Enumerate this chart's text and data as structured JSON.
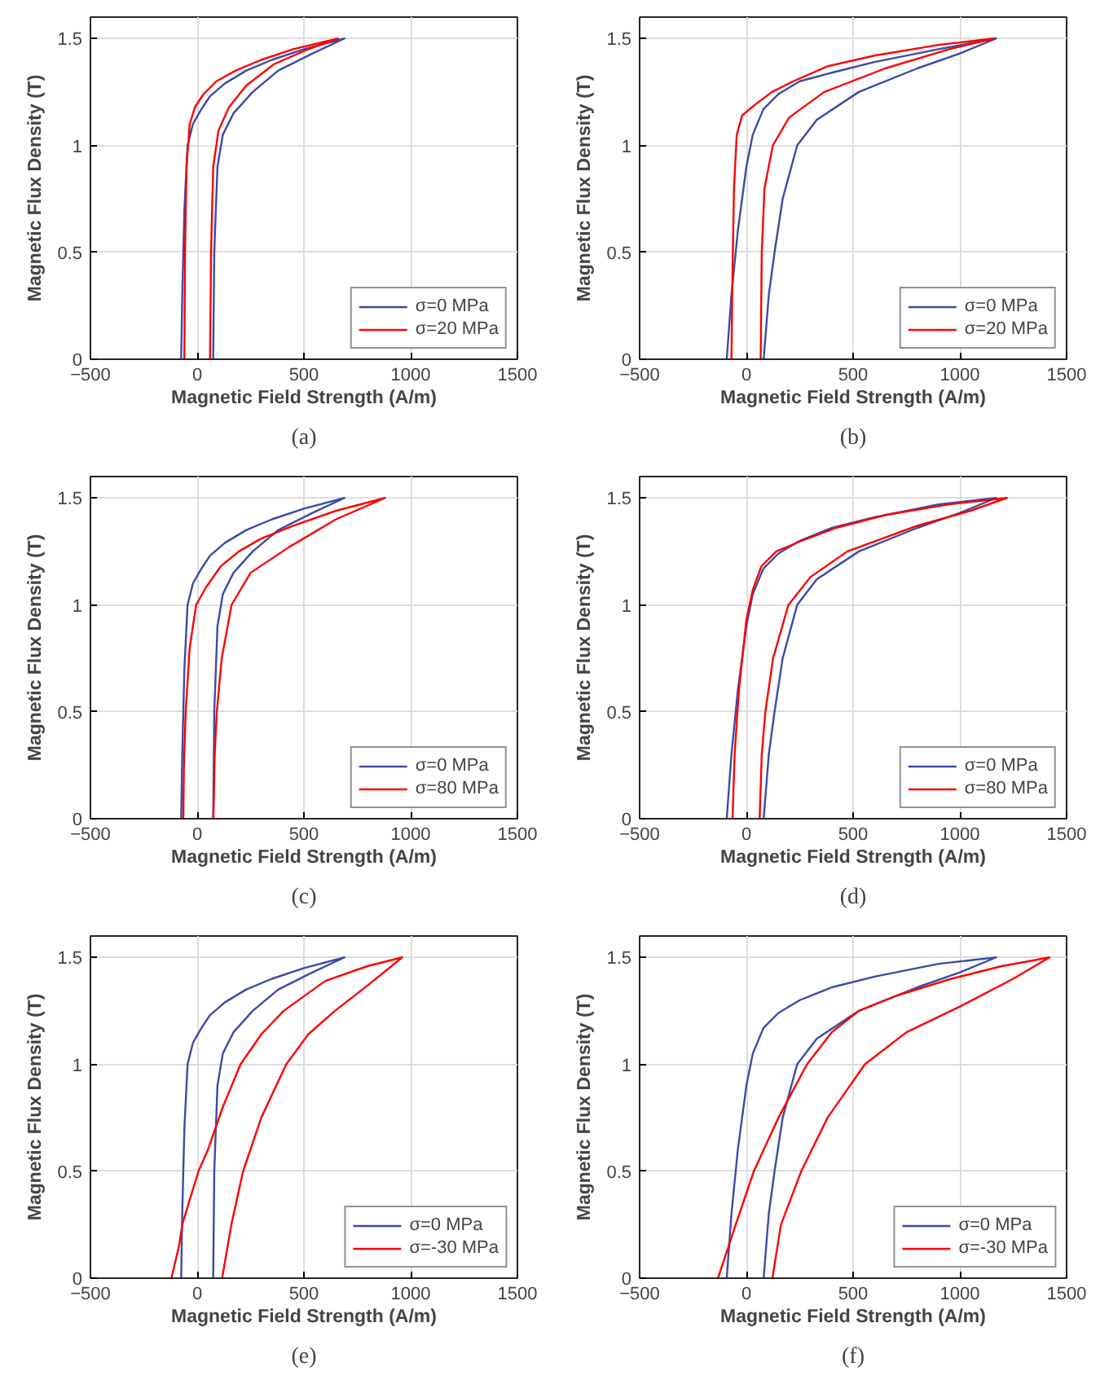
{
  "chart_data": [
    {
      "type": "line",
      "xlabel": "Magnetic Field Strength (A/m)",
      "ylabel": "Magnetic Flux Density (T)",
      "xlim": [
        -500,
        1500
      ],
      "ylim": [
        0,
        1.6
      ],
      "xticks": [
        -500,
        0,
        500,
        1000,
        1500
      ],
      "yticks": [
        0,
        0.5,
        1,
        1.5
      ],
      "grid": true,
      "legend": "bottom right",
      "annotations": [
        "(a)"
      ],
      "series": [
        {
          "name": "σ=0 MPa",
          "color": "#3b4ba8",
          "x": [
            -75,
            -70,
            -60,
            -45,
            -20,
            20,
            60,
            130,
            230,
            350,
            500,
            690,
            540,
            380,
            260,
            170,
            120,
            95,
            80,
            75
          ],
          "values": [
            0,
            0.3,
            0.7,
            1.0,
            1.1,
            1.17,
            1.23,
            1.29,
            1.35,
            1.4,
            1.45,
            1.5,
            1.43,
            1.35,
            1.25,
            1.15,
            1.05,
            0.9,
            0.5,
            0
          ]
        },
        {
          "name": "σ=20 MPa",
          "color": "#ff0000",
          "x": [
            -60,
            -57,
            -50,
            -35,
            -10,
            30,
            90,
            180,
            300,
            450,
            660,
            520,
            360,
            230,
            150,
            100,
            75,
            65,
            60
          ],
          "values": [
            0,
            0.5,
            0.9,
            1.1,
            1.18,
            1.24,
            1.3,
            1.35,
            1.4,
            1.45,
            1.5,
            1.45,
            1.38,
            1.28,
            1.18,
            1.07,
            0.9,
            0.5,
            0
          ]
        }
      ]
    },
    {
      "type": "line",
      "xlabel": "Magnetic Field Strength (A/m)",
      "ylabel": "Magnetic Flux Density (T)",
      "xlim": [
        -500,
        1500
      ],
      "ylim": [
        0,
        1.6
      ],
      "xticks": [
        -500,
        0,
        500,
        1000,
        1500
      ],
      "yticks": [
        0,
        0.5,
        1,
        1.5
      ],
      "grid": true,
      "legend": "bottom right",
      "annotations": [
        "(b)"
      ],
      "series": [
        {
          "name": "σ=0 MPa",
          "color": "#3b4ba8",
          "x": [
            -92,
            -70,
            -40,
            0,
            30,
            80,
            150,
            250,
            400,
            600,
            900,
            1170,
            1000,
            800,
            527,
            330,
            238,
            170,
            132,
            105,
            81
          ],
          "values": [
            0,
            0.3,
            0.6,
            0.9,
            1.05,
            1.17,
            1.24,
            1.3,
            1.34,
            1.39,
            1.45,
            1.5,
            1.43,
            1.36,
            1.25,
            1.12,
            1.0,
            0.75,
            0.5,
            0.3,
            0
          ]
        },
        {
          "name": "σ=20 MPa",
          "color": "#ff0000",
          "x": [
            -70,
            -65,
            -58,
            -45,
            -20,
            40,
            120,
            220,
            380,
            600,
            900,
            1160,
            950,
            650,
            365,
            200,
            124,
            85,
            72,
            67
          ],
          "values": [
            0,
            0.4,
            0.8,
            1.05,
            1.14,
            1.19,
            1.25,
            1.3,
            1.37,
            1.42,
            1.47,
            1.5,
            1.45,
            1.36,
            1.25,
            1.13,
            1.0,
            0.8,
            0.5,
            0
          ]
        }
      ]
    },
    {
      "type": "line",
      "xlabel": "Magnetic Field Strength (A/m)",
      "ylabel": "Magnetic Flux Density (T)",
      "xlim": [
        -500,
        1500
      ],
      "ylim": [
        0,
        1.6
      ],
      "xticks": [
        -500,
        0,
        500,
        1000,
        1500
      ],
      "yticks": [
        0,
        0.5,
        1,
        1.5
      ],
      "grid": true,
      "legend": "bottom right",
      "annotations": [
        "(c)"
      ],
      "series": [
        {
          "name": "σ=0 MPa",
          "color": "#3b4ba8",
          "x": [
            -75,
            -70,
            -60,
            -45,
            -20,
            20,
            60,
            130,
            230,
            350,
            500,
            690,
            540,
            380,
            260,
            170,
            120,
            95,
            80,
            75
          ],
          "values": [
            0,
            0.3,
            0.7,
            1.0,
            1.1,
            1.17,
            1.23,
            1.29,
            1.35,
            1.4,
            1.45,
            1.5,
            1.43,
            1.35,
            1.25,
            1.15,
            1.05,
            0.9,
            0.5,
            0
          ]
        },
        {
          "name": "σ=80 MPa",
          "color": "#ff0000",
          "x": [
            -65,
            -62,
            -54,
            -35,
            -5,
            40,
            110,
            195,
            300,
            450,
            650,
            880,
            650,
            430,
            250,
            161,
            115,
            92,
            82,
            76
          ],
          "values": [
            0,
            0.25,
            0.5,
            0.8,
            1.0,
            1.08,
            1.18,
            1.25,
            1.31,
            1.37,
            1.44,
            1.5,
            1.4,
            1.27,
            1.15,
            1.0,
            0.75,
            0.5,
            0.3,
            0
          ]
        }
      ]
    },
    {
      "type": "line",
      "xlabel": "Magnetic Field Strength (A/m)",
      "ylabel": "Magnetic Flux Density (T)",
      "xlim": [
        -500,
        1500
      ],
      "ylim": [
        0,
        1.6
      ],
      "xticks": [
        -500,
        0,
        500,
        1000,
        1500
      ],
      "yticks": [
        0,
        0.5,
        1,
        1.5
      ],
      "grid": true,
      "legend": "bottom right",
      "annotations": [
        "(d)"
      ],
      "series": [
        {
          "name": "σ=0 MPa",
          "color": "#3b4ba8",
          "x": [
            -92,
            -70,
            -40,
            0,
            30,
            80,
            150,
            250,
            400,
            600,
            900,
            1170,
            1000,
            800,
            527,
            330,
            238,
            170,
            132,
            105,
            81
          ],
          "values": [
            0,
            0.3,
            0.6,
            0.9,
            1.05,
            1.17,
            1.24,
            1.3,
            1.36,
            1.41,
            1.47,
            1.5,
            1.43,
            1.36,
            1.25,
            1.12,
            1.0,
            0.75,
            0.5,
            0.3,
            0
          ]
        },
        {
          "name": "σ=80 MPa",
          "color": "#ff0000",
          "x": [
            -65,
            -55,
            -35,
            0,
            30,
            70,
            140,
            260,
            420,
            650,
            950,
            1220,
            1050,
            800,
            473,
            300,
            197,
            125,
            89,
            72,
            62
          ],
          "values": [
            0,
            0.3,
            0.6,
            0.93,
            1.07,
            1.18,
            1.25,
            1.3,
            1.36,
            1.42,
            1.47,
            1.5,
            1.44,
            1.37,
            1.25,
            1.13,
            1.0,
            0.75,
            0.5,
            0.3,
            0
          ]
        }
      ]
    },
    {
      "type": "line",
      "xlabel": "Magnetic Field Strength (A/m)",
      "ylabel": "Magnetic Flux Density (T)",
      "xlim": [
        -500,
        1500
      ],
      "ylim": [
        0,
        1.6
      ],
      "xticks": [
        -500,
        0,
        500,
        1000,
        1500
      ],
      "yticks": [
        0,
        0.5,
        1,
        1.5
      ],
      "grid": true,
      "legend": "bottom right",
      "annotations": [
        "(e)"
      ],
      "series": [
        {
          "name": "σ=0 MPa",
          "color": "#3b4ba8",
          "x": [
            -75,
            -70,
            -60,
            -45,
            -20,
            20,
            60,
            130,
            230,
            350,
            500,
            690,
            540,
            380,
            260,
            170,
            120,
            95,
            80,
            75
          ],
          "values": [
            0,
            0.3,
            0.7,
            1.0,
            1.1,
            1.17,
            1.23,
            1.29,
            1.35,
            1.4,
            1.45,
            1.5,
            1.43,
            1.35,
            1.25,
            1.15,
            1.05,
            0.9,
            0.5,
            0
          ]
        },
        {
          "name": "σ=-30 MPa",
          "color": "#ff0000",
          "x": [
            -121,
            -85,
            -70,
            -40,
            6,
            50,
            120,
            203,
            300,
            405,
            600,
            800,
            960,
            800,
            645,
            520,
            417,
            300,
            215,
            160,
            117
          ],
          "values": [
            0,
            0.15,
            0.25,
            0.35,
            0.5,
            0.6,
            0.8,
            1.0,
            1.14,
            1.25,
            1.39,
            1.46,
            1.5,
            1.37,
            1.25,
            1.14,
            1.0,
            0.75,
            0.5,
            0.25,
            0
          ]
        }
      ]
    },
    {
      "type": "line",
      "xlabel": "Magnetic Field Strength (A/m)",
      "ylabel": "Magnetic Flux Density (T)",
      "xlim": [
        -500,
        1500
      ],
      "ylim": [
        0,
        1.6
      ],
      "xticks": [
        -500,
        0,
        500,
        1000,
        1500
      ],
      "yticks": [
        0,
        0.5,
        1,
        1.5
      ],
      "grid": true,
      "legend": "bottom right",
      "annotations": [
        "(f)"
      ],
      "series": [
        {
          "name": "σ=0 MPa",
          "color": "#3b4ba8",
          "x": [
            -92,
            -70,
            -40,
            0,
            30,
            80,
            150,
            250,
            400,
            600,
            900,
            1170,
            1000,
            800,
            527,
            330,
            238,
            170,
            132,
            105,
            81
          ],
          "values": [
            0,
            0.3,
            0.6,
            0.9,
            1.05,
            1.17,
            1.24,
            1.3,
            1.36,
            1.41,
            1.47,
            1.5,
            1.43,
            1.36,
            1.25,
            1.12,
            1.0,
            0.75,
            0.5,
            0.3,
            0
          ]
        },
        {
          "name": "σ=-30 MPa",
          "color": "#ff0000",
          "x": [
            -133,
            -50,
            35,
            150,
            284,
            400,
            527,
            700,
            960,
            1200,
            1420,
            1250,
            1000,
            750,
            555,
            380,
            257,
            162,
            122
          ],
          "values": [
            0,
            0.25,
            0.5,
            0.75,
            1.0,
            1.15,
            1.25,
            1.32,
            1.4,
            1.46,
            1.5,
            1.4,
            1.27,
            1.15,
            1.0,
            0.75,
            0.5,
            0.25,
            0
          ]
        }
      ]
    }
  ]
}
